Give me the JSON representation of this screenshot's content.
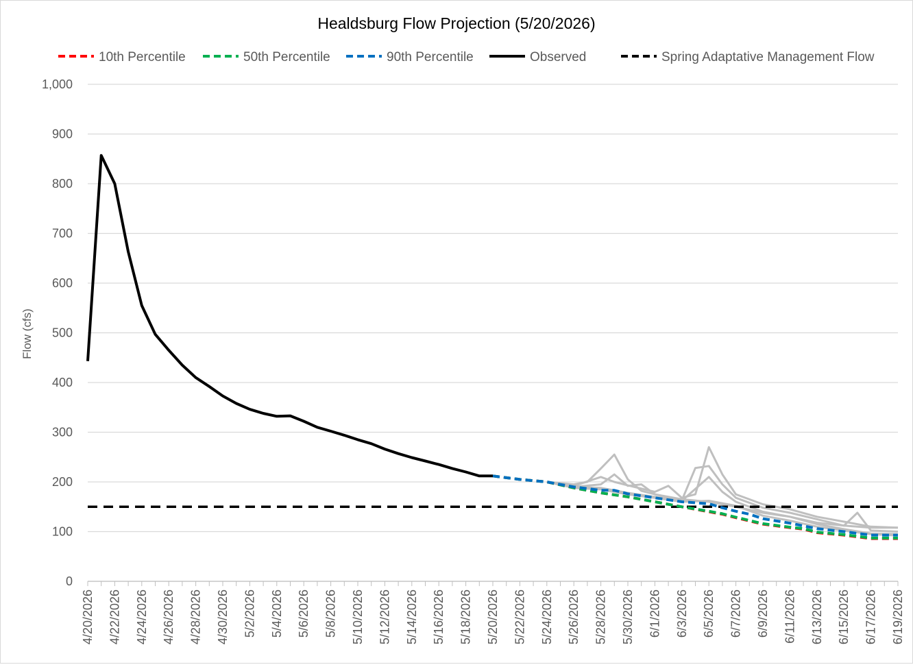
{
  "chart_data": {
    "type": "line",
    "title": "Healdsburg Flow Projection (5/20/2026)",
    "xlabel": "",
    "ylabel": "Flow (cfs)",
    "ylim": [
      0,
      1000
    ],
    "yticks": [
      0,
      100,
      200,
      300,
      400,
      500,
      600,
      700,
      800,
      900,
      1000
    ],
    "ytick_labels": [
      "0",
      "100",
      "200",
      "300",
      "400",
      "500",
      "600",
      "700",
      "800",
      "900",
      "1,000"
    ],
    "xlim": [
      "4/20/2026",
      "6/19/2026"
    ],
    "xtick_labels": [
      "4/20/2026",
      "4/22/2026",
      "4/24/2026",
      "4/26/2026",
      "4/28/2026",
      "4/30/2026",
      "5/2/2026",
      "5/4/2026",
      "5/6/2026",
      "5/8/2026",
      "5/10/2026",
      "5/12/2026",
      "5/14/2026",
      "5/16/2026",
      "5/18/2026",
      "5/20/2026",
      "5/22/2026",
      "5/24/2026",
      "5/26/2026",
      "5/28/2026",
      "5/30/2026",
      "6/1/2026",
      "6/3/2026",
      "6/5/2026",
      "6/7/2026",
      "6/9/2026",
      "6/11/2026",
      "6/13/2026",
      "6/15/2026",
      "6/17/2026",
      "6/19/2026"
    ],
    "grid": true,
    "legend_position": "top",
    "colors": {
      "p10": "#ff0000",
      "p50": "#00b050",
      "p90": "#0070c0",
      "observed": "#000000",
      "management": "#000000",
      "ensemble": "#bfbfbf",
      "grid": "#d9d9d9",
      "axis_text": "#595959"
    },
    "legend": [
      {
        "key": "p10",
        "label": "10th Percentile",
        "style": "dashed"
      },
      {
        "key": "p50",
        "label": "50th Percentile",
        "style": "dashed"
      },
      {
        "key": "p90",
        "label": "90th Percentile",
        "style": "dashed"
      },
      {
        "key": "observed",
        "label": "Observed",
        "style": "solid"
      },
      {
        "key": "management",
        "label": "Spring Adaptative Management Flow",
        "style": "dashed"
      }
    ],
    "series": [
      {
        "key": "observed",
        "name": "Observed",
        "x": [
          "4/20/2026",
          "4/21/2026",
          "4/22/2026",
          "4/23/2026",
          "4/24/2026",
          "4/25/2026",
          "4/26/2026",
          "4/27/2026",
          "4/28/2026",
          "4/29/2026",
          "4/30/2026",
          "5/1/2026",
          "5/2/2026",
          "5/3/2026",
          "5/4/2026",
          "5/5/2026",
          "5/6/2026",
          "5/7/2026",
          "5/8/2026",
          "5/9/2026",
          "5/10/2026",
          "5/11/2026",
          "5/12/2026",
          "5/13/2026",
          "5/14/2026",
          "5/15/2026",
          "5/16/2026",
          "5/17/2026",
          "5/18/2026",
          "5/19/2026",
          "5/20/2026"
        ],
        "values": [
          443,
          857,
          800,
          663,
          555,
          497,
          465,
          435,
          410,
          392,
          373,
          358,
          346,
          338,
          332,
          333,
          322,
          310,
          302,
          294,
          285,
          277,
          266,
          257,
          249,
          242,
          235,
          227,
          220,
          212,
          212
        ]
      },
      {
        "key": "p10",
        "name": "10th Percentile",
        "x": [
          "5/20/2026",
          "5/22/2026",
          "5/24/2026",
          "5/26/2026",
          "5/28/2026",
          "5/30/2026",
          "6/1/2026",
          "6/3/2026",
          "6/5/2026",
          "6/6/2026",
          "6/7/2026",
          "6/9/2026",
          "6/11/2026",
          "6/12/2026",
          "6/13/2026",
          "6/15/2026",
          "6/17/2026",
          "6/19/2026"
        ],
        "values": [
          212,
          205,
          200,
          188,
          178,
          170,
          160,
          150,
          140,
          135,
          128,
          115,
          108,
          105,
          98,
          93,
          86,
          86
        ]
      },
      {
        "key": "p50",
        "name": "50th Percentile",
        "x": [
          "5/20/2026",
          "5/22/2026",
          "5/24/2026",
          "5/26/2026",
          "5/28/2026",
          "5/30/2026",
          "6/1/2026",
          "6/3/2026",
          "6/5/2026",
          "6/6/2026",
          "6/7/2026",
          "6/9/2026",
          "6/11/2026",
          "6/12/2026",
          "6/13/2026",
          "6/15/2026",
          "6/17/2026",
          "6/19/2026"
        ],
        "values": [
          212,
          205,
          200,
          188,
          178,
          170,
          160,
          150,
          141,
          136,
          129,
          116,
          109,
          106,
          99,
          94,
          87,
          87
        ]
      },
      {
        "key": "p90",
        "name": "90th Percentile",
        "x": [
          "5/20/2026",
          "5/22/2026",
          "5/24/2026",
          "5/26/2026",
          "5/28/2026",
          "5/29/2026",
          "5/30/2026",
          "6/1/2026",
          "6/3/2026",
          "6/5/2026",
          "6/6/2026",
          "6/7/2026",
          "6/8/2026",
          "6/9/2026",
          "6/11/2026",
          "6/13/2026",
          "6/15/2026",
          "6/17/2026",
          "6/19/2026"
        ],
        "values": [
          212,
          205,
          200,
          190,
          183,
          183,
          176,
          168,
          160,
          156,
          148,
          141,
          135,
          126,
          117,
          106,
          100,
          93,
          93
        ]
      },
      {
        "key": "management",
        "name": "Spring Adaptative Management Flow",
        "x": [
          "4/20/2026",
          "6/19/2026"
        ],
        "values": [
          150,
          150
        ]
      }
    ],
    "ensemble_members": [
      {
        "x": [
          "5/24/2026",
          "5/26/2026",
          "5/27/2026",
          "5/28/2026",
          "5/29/2026",
          "5/30/2026",
          "5/31/2026",
          "6/1/2026",
          "6/3/2026",
          "6/5/2026",
          "6/7/2026",
          "6/9/2026",
          "6/11/2026",
          "6/13/2026",
          "6/15/2026",
          "6/17/2026",
          "6/19/2026"
        ],
        "values": [
          200,
          195,
          200,
          227,
          255,
          205,
          182,
          175,
          165,
          160,
          150,
          138,
          130,
          118,
          112,
          108,
          108
        ]
      },
      {
        "x": [
          "5/24/2026",
          "5/26/2026",
          "5/28/2026",
          "5/29/2026",
          "5/30/2026",
          "6/1/2026",
          "6/2/2026",
          "6/3/2026",
          "6/4/2026",
          "6/5/2026",
          "6/6/2026",
          "6/7/2026",
          "6/9/2026",
          "6/11/2026",
          "6/13/2026",
          "6/15/2026",
          "6/17/2026",
          "6/19/2026"
        ],
        "values": [
          200,
          192,
          210,
          200,
          193,
          180,
          192,
          168,
          175,
          270,
          215,
          175,
          155,
          145,
          130,
          120,
          110,
          108
        ]
      },
      {
        "x": [
          "5/24/2026",
          "5/26/2026",
          "5/28/2026",
          "5/29/2026",
          "5/30/2026",
          "5/31/2026",
          "6/1/2026",
          "6/3/2026",
          "6/4/2026",
          "6/5/2026",
          "6/6/2026",
          "6/7/2026",
          "6/9/2026",
          "6/11/2026",
          "6/13/2026",
          "6/15/2026",
          "6/16/2026",
          "6/17/2026",
          "6/19/2026"
        ],
        "values": [
          200,
          190,
          195,
          215,
          192,
          195,
          175,
          163,
          228,
          232,
          195,
          168,
          148,
          138,
          125,
          112,
          138,
          102,
          100
        ]
      },
      {
        "x": [
          "5/24/2026",
          "5/26/2026",
          "5/28/2026",
          "5/30/2026",
          "6/1/2026",
          "6/3/2026",
          "6/5/2026",
          "6/6/2026",
          "6/7/2026",
          "6/9/2026",
          "6/11/2026",
          "6/13/2026",
          "6/15/2026",
          "6/17/2026",
          "6/19/2026"
        ],
        "values": [
          200,
          190,
          188,
          178,
          170,
          162,
          210,
          180,
          160,
          140,
          130,
          115,
          105,
          96,
          95
        ]
      },
      {
        "x": [
          "5/24/2026",
          "5/26/2026",
          "5/28/2026",
          "5/30/2026",
          "6/1/2026",
          "6/3/2026",
          "6/5/2026",
          "6/7/2026",
          "6/9/2026",
          "6/11/2026",
          "6/13/2026",
          "6/15/2026",
          "6/17/2026",
          "6/19/2026"
        ],
        "values": [
          200,
          188,
          185,
          175,
          168,
          160,
          162,
          152,
          132,
          122,
          110,
          102,
          95,
          92
        ]
      }
    ]
  }
}
